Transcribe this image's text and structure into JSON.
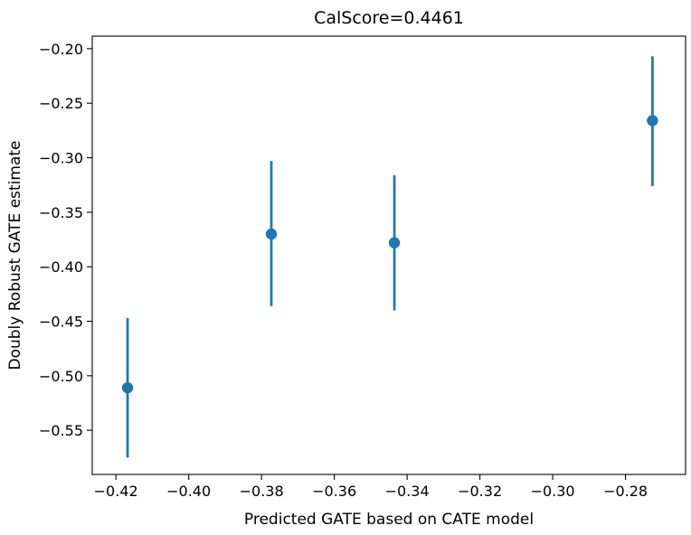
{
  "chart_data": {
    "type": "scatter",
    "title": "CalScore=0.4461",
    "xlabel": "Predicted GATE based on CATE model",
    "ylabel": "Doubly Robust GATE estimate",
    "xlim": [
      -0.4265,
      -0.2635
    ],
    "ylim": [
      -0.5905,
      -0.1885
    ],
    "x_ticks": [
      -0.42,
      -0.4,
      -0.38,
      -0.36,
      -0.34,
      -0.32,
      -0.3,
      -0.28
    ],
    "x_tick_labels": [
      "−0.42",
      "−0.40",
      "−0.38",
      "−0.36",
      "−0.34",
      "−0.32",
      "−0.30",
      "−0.28"
    ],
    "y_ticks": [
      -0.55,
      -0.5,
      -0.45,
      -0.4,
      -0.35,
      -0.3,
      -0.25,
      -0.2
    ],
    "y_tick_labels": [
      "−0.55",
      "−0.50",
      "−0.45",
      "−0.40",
      "−0.35",
      "−0.30",
      "−0.25",
      "−0.20"
    ],
    "grid": false,
    "color": "#1f77b4",
    "points": [
      {
        "x": -0.4168,
        "y": -0.511,
        "y_low": -0.575,
        "y_high": -0.447
      },
      {
        "x": -0.3773,
        "y": -0.37,
        "y_low": -0.436,
        "y_high": -0.303
      },
      {
        "x": -0.3435,
        "y": -0.378,
        "y_low": -0.44,
        "y_high": -0.316
      },
      {
        "x": -0.2726,
        "y": -0.266,
        "y_low": -0.326,
        "y_high": -0.207
      }
    ]
  }
}
